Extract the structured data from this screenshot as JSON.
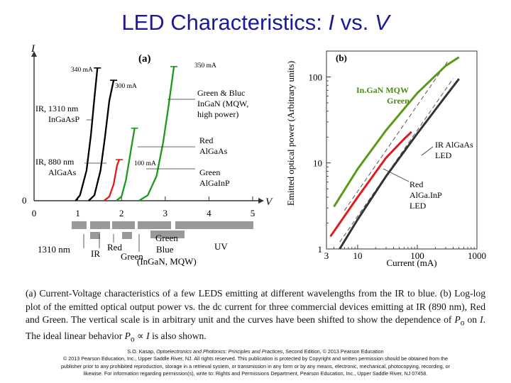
{
  "slide": {
    "title_prefix": "LED Characteristics: ",
    "title_i": "I",
    "title_mid": " vs. ",
    "title_v": "V"
  },
  "caption": {
    "part1": "(a) Current-Voltage characteristics of a few LEDS emitting at different wavelengths from the IR to blue. (b) Log-log plot of the emitted optical output power vs. the dc current for three commercial devices emitting at IR (890 nm), Red and Green. The vertical scale is in arbitrary unit and the curves have been shifted to show the dependence of ",
    "po1": "P",
    "po1_sub": "o",
    "part2": " on ",
    "i1": "I",
    "part3": ". The ideal linear behavior ",
    "po2": "P",
    "po2_sub": "o",
    "prop": " ∝ ",
    "i2": "I",
    "part4": " is also shown."
  },
  "credit": {
    "line1_pre": "S.O. Kasap, ",
    "line1_book": "Optoelectronics and Photonics: Principles and Practices",
    "line1_post": ", Second Edition, © 2013 Pearson Education",
    "line2": "© 2013 Pearson Education, Inc., Upper Saddle River, NJ. All rights reserved. This publication is protected by Copyright and written permission should be obtained from the",
    "line3": "publisher prior to any prohibited reproduction, storage in a retrieval system, or transmission in any form or by any means, electronic, mechanical, photocopying, recording, or",
    "line4": "likewise. For information regarding permission(s), write to: Rights and Permissions Department, Pearson Education, Inc., Upper Saddle River, NJ 07458."
  },
  "chart_data": [
    {
      "panel": "(a)",
      "type": "line",
      "ylabel": "I",
      "xlabel": "V",
      "xlim": [
        0,
        5
      ],
      "x_ticks": [
        "0",
        "1",
        "2",
        "3",
        "4",
        "5"
      ],
      "y_ticks": [
        "0"
      ],
      "grid": false,
      "series": [
        {
          "name": "IR, 1310 nm InGaAsP",
          "color": "#000000",
          "turn_on_v": 1.0,
          "points": [
            [
              0.95,
              0
            ],
            [
              1.05,
              0.04
            ],
            [
              1.2,
              0.22
            ],
            [
              1.3,
              0.48
            ],
            [
              1.38,
              0.75
            ],
            [
              1.45,
              0.97
            ]
          ],
          "label": "340 mA"
        },
        {
          "name": "IR, 880 nm AlGaAs",
          "color": "#000000",
          "turn_on_v": 1.3,
          "points": [
            [
              1.25,
              0
            ],
            [
              1.38,
              0.04
            ],
            [
              1.52,
              0.22
            ],
            [
              1.62,
              0.46
            ],
            [
              1.72,
              0.73
            ],
            [
              1.82,
              0.88
            ]
          ],
          "label": "300 mA"
        },
        {
          "name": "Red AlGaAs",
          "color": "#e01b1b",
          "turn_on_v": 1.7,
          "points": [
            [
              1.6,
              0
            ],
            [
              1.72,
              0.03
            ],
            [
              1.82,
              0.12
            ],
            [
              1.9,
              0.26
            ],
            [
              1.95,
              0.3
            ]
          ],
          "label": "100 mA"
        },
        {
          "name": "Green AlGaInP",
          "color": "#1a9a1a",
          "turn_on_v": 2.0,
          "points": [
            [
              1.88,
              0
            ],
            [
              2.0,
              0.03
            ],
            [
              2.1,
              0.15
            ],
            [
              2.22,
              0.38
            ],
            [
              2.3,
              0.53
            ]
          ]
        },
        {
          "name": "Green & Blue InGaN (MQW, high power)",
          "color": "#1a9a1a",
          "turn_on_v": 2.5,
          "points": [
            [
              2.4,
              0
            ],
            [
              2.6,
              0.04
            ],
            [
              2.8,
              0.18
            ],
            [
              2.95,
              0.42
            ],
            [
              3.08,
              0.7
            ],
            [
              3.2,
              0.98
            ]
          ],
          "label": "350 mA"
        }
      ],
      "value_labels": [
        "340 mA",
        "300 mA",
        "350 mA",
        "100 mA"
      ],
      "curve_labels": {
        "ir1310_a": "IR, 1310 nm",
        "ir1310_b": "InGaAsP",
        "ir880_a": "IR, 880 nm",
        "ir880_b": "AlGaAs",
        "gb_a": "Green & Bluc",
        "gb_b": "InGaN (MQW,",
        "gb_c": "high power)",
        "red_a": "Red",
        "red_b": "AlGaAs",
        "green_a": "Green",
        "green_b": "AlGaInP"
      },
      "bandgap_bars": {
        "labels": {
          "nm1310": "1310 nm",
          "ir": "IR",
          "red": "Red",
          "green_low": "Green",
          "green": "Green",
          "blue": "Blue",
          "blue_note": "(InGaN, MQW)",
          "uv": "UV"
        },
        "bar_color": "#999999"
      }
    },
    {
      "panel": "(b)",
      "type": "line",
      "xscale": "log",
      "yscale": "log",
      "xlabel": "Current (mA)",
      "ylabel": "Emitted optical power (Arbitrary units)",
      "xlim": [
        3,
        1000
      ],
      "ylim": [
        1,
        200
      ],
      "x_ticks": [
        "3",
        "10",
        "100",
        "1000"
      ],
      "y_ticks": [
        "1",
        "10",
        "100"
      ],
      "grid": false,
      "series": [
        {
          "name": "IR AlGaAs LED",
          "color": "#333333",
          "x": [
            5,
            10,
            30,
            100,
            300,
            500
          ],
          "y": [
            1,
            2.2,
            7,
            22,
            60,
            95
          ]
        },
        {
          "name": "Red AlGaInP LED",
          "color": "#e01b1b",
          "x": [
            3.5,
            10,
            30,
            60,
            80
          ],
          "y": [
            1.4,
            4,
            11.5,
            19,
            23
          ]
        },
        {
          "name": "InGaN MQW Green",
          "color": "#5a9a1a",
          "x": [
            4,
            10,
            30,
            100,
            300,
            500
          ],
          "y": [
            3.1,
            8.5,
            24,
            65,
            135,
            170
          ]
        }
      ],
      "ideal_linear_lines": 2,
      "annotations": {
        "green_a": "In.GaN MQW",
        "green_b": "Green",
        "ir_a": "IR AlGaAs",
        "ir_b": "LED",
        "red_a": "Red",
        "red_b": "AlGa.InP",
        "red_c": "LED"
      }
    }
  ]
}
